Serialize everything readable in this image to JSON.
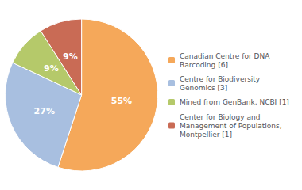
{
  "chart_data": {
    "type": "pie",
    "categories": [
      "Canadian Centre for DNA\nBarcoding [6]",
      "Centre for Biodiversity\nGenomics [3]",
      "Mined from GenBank, NCBI [1]",
      "Center for Biology and\nManagement of Populations,\nMontpellier [1]"
    ],
    "values": [
      55,
      27,
      9,
      9
    ],
    "value_labels": [
      "55%",
      "27%",
      "9%",
      "9%"
    ],
    "colors": [
      "#f5a85a",
      "#a8bfe0",
      "#b5c96a",
      "#c96b55"
    ],
    "data_labels": true,
    "legend": "right"
  }
}
